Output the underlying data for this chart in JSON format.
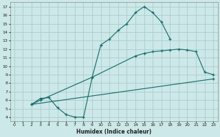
{
  "xlabel": "Humidex (Indice chaleur)",
  "background_color": "#cce8e8",
  "grid_color": "#aacccc",
  "line_color": "#1a6b6b",
  "xlim": [
    -0.5,
    23.5
  ],
  "ylim": [
    3.5,
    17.5
  ],
  "xticks": [
    0,
    1,
    2,
    3,
    4,
    5,
    6,
    7,
    8,
    9,
    10,
    11,
    12,
    13,
    14,
    15,
    16,
    17,
    18,
    19,
    20,
    21,
    22,
    23
  ],
  "yticks": [
    4,
    5,
    6,
    7,
    8,
    9,
    10,
    11,
    12,
    13,
    14,
    15,
    16,
    17
  ],
  "line1_x": [
    2,
    3,
    4,
    5,
    6,
    7,
    8,
    9,
    10,
    11,
    12,
    13,
    14,
    15,
    16,
    17,
    18
  ],
  "line1_y": [
    5.5,
    6.2,
    6.3,
    5.1,
    4.3,
    4.0,
    4.0,
    8.7,
    12.5,
    13.2,
    14.2,
    15.0,
    16.3,
    17.0,
    16.3,
    15.2,
    13.2
  ],
  "line2_x": [
    2,
    3,
    9,
    14,
    15,
    16,
    17,
    18,
    19,
    20,
    21,
    22,
    23
  ],
  "line2_y": [
    5.5,
    6.0,
    8.7,
    11.2,
    11.5,
    11.7,
    11.8,
    11.9,
    12.0,
    11.9,
    11.7,
    9.3,
    9.0
  ],
  "line3_x": [
    2,
    23
  ],
  "line3_y": [
    5.5,
    8.5
  ]
}
